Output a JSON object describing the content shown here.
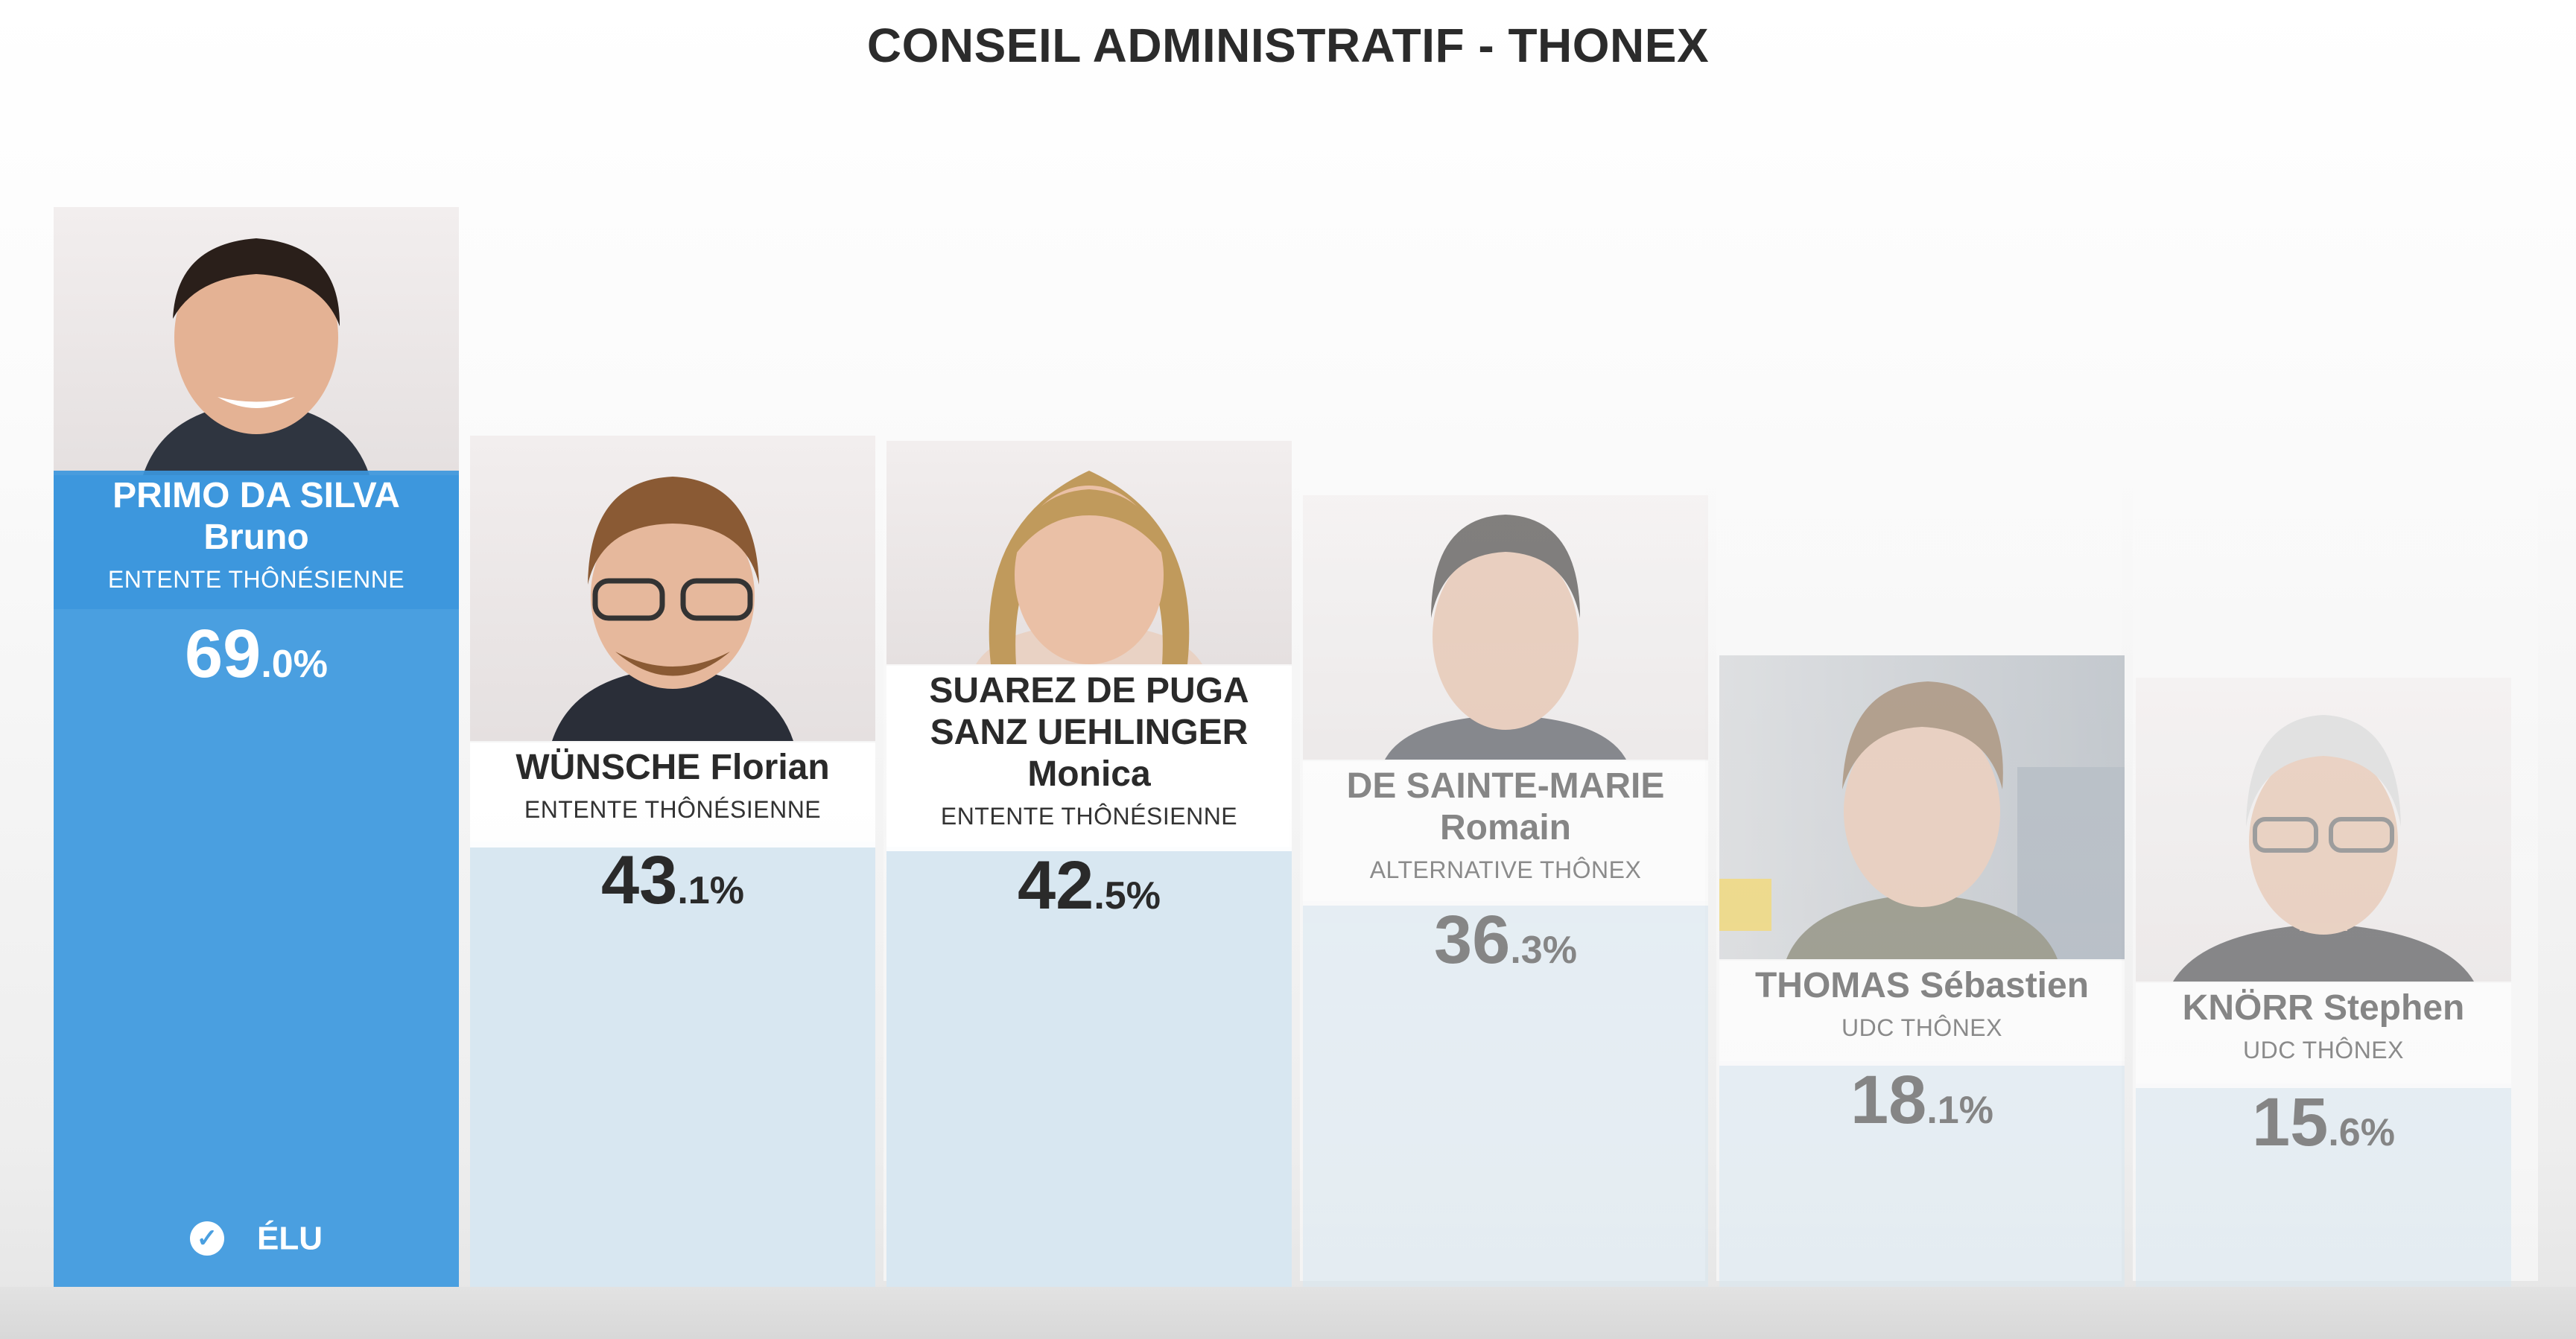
{
  "title": "CONSEIL ADMINISTRATIF - THONEX",
  "chart_data": {
    "type": "bar",
    "title": "CONSEIL ADMINISTRATIF - THONEX",
    "ylim": [
      0,
      100
    ],
    "categories": [
      "PRIMO DA SILVA Bruno",
      "WÜNSCHE Florian",
      "SUAREZ DE PUGA SANZ UEHLINGER Monica",
      "DE SAINTE-MARIE Romain",
      "THOMAS Sébastien",
      "KNÖRR Stephen"
    ],
    "values": [
      69.0,
      43.1,
      42.5,
      36.3,
      18.1,
      15.6
    ],
    "colors": {
      "elected": "#4a9fe0",
      "other": "#d8e7f1"
    }
  },
  "candidates": [
    {
      "name_lines": [
        "PRIMO DA SILVA",
        "Bruno"
      ],
      "party": "ENTENTE THÔNÉSIENNE",
      "pct_int": "69",
      "pct_dec": ".0%",
      "value": 69.0,
      "elected": true,
      "elected_label": "ÉLU",
      "photo": "portrait-photo"
    },
    {
      "name_lines": [
        "WÜNSCHE Florian"
      ],
      "party": "ENTENTE THÔNÉSIENNE",
      "pct_int": "43",
      "pct_dec": ".1%",
      "value": 43.1,
      "elected": false,
      "photo": "portrait-photo"
    },
    {
      "name_lines": [
        "SUAREZ DE PUGA",
        "SANZ UEHLINGER",
        "Monica"
      ],
      "party": "ENTENTE THÔNÉSIENNE",
      "pct_int": "42",
      "pct_dec": ".5%",
      "value": 42.5,
      "elected": false,
      "photo": "portrait-photo"
    },
    {
      "name_lines": [
        "DE SAINTE-MARIE",
        "Romain"
      ],
      "party": "ALTERNATIVE THÔNEX",
      "pct_int": "36",
      "pct_dec": ".3%",
      "value": 36.3,
      "elected": false,
      "photo": "portrait-photo"
    },
    {
      "name_lines": [
        "THOMAS Sébastien"
      ],
      "party": "UDC THÔNEX",
      "pct_int": "18",
      "pct_dec": ".1%",
      "value": 18.1,
      "elected": false,
      "photo": "portrait-photo"
    },
    {
      "name_lines": [
        "KNÖRR Stephen"
      ],
      "party": "UDC THÔNEX",
      "pct_int": "15",
      "pct_dec": ".6%",
      "value": 15.6,
      "elected": false,
      "photo": "portrait-photo"
    }
  ]
}
